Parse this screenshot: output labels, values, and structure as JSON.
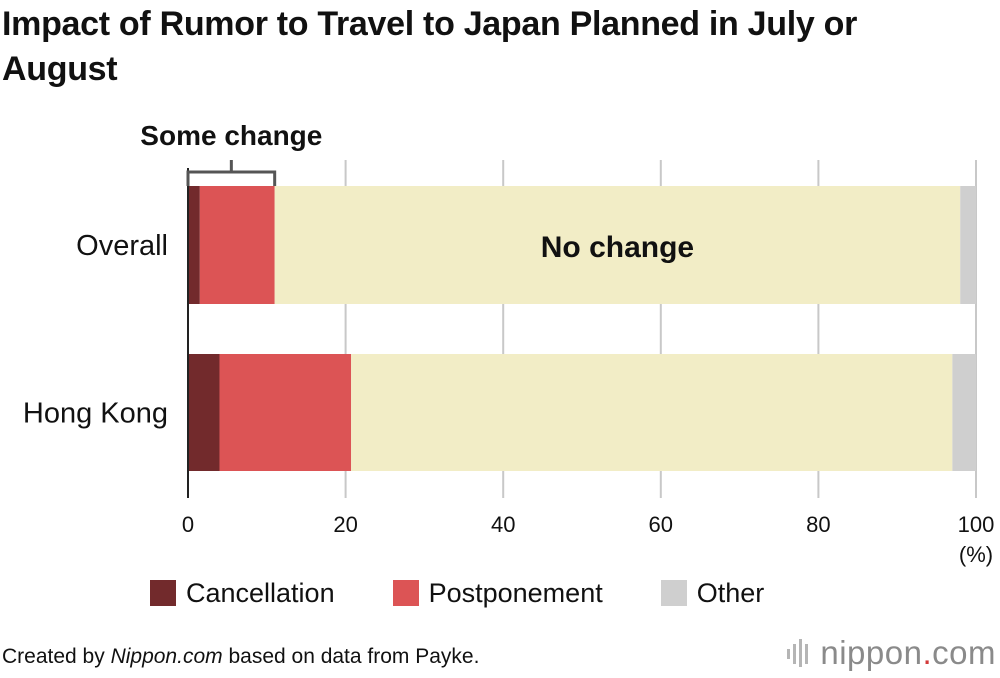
{
  "title": "Impact of Rumor to Travel to Japan Planned in July or August",
  "bracket_label": "Some change",
  "inside_label": "No change",
  "unit_label": "(%)",
  "colors": {
    "cancellation": "#722a2c",
    "postponement": "#dc5455",
    "no_change": "#f2edc6",
    "other": "#cfcfcf",
    "grid": "#c8c8c8",
    "axis": "#222222",
    "bracket": "#555555"
  },
  "legend": [
    {
      "label": "Cancellation",
      "color": "#722a2c"
    },
    {
      "label": "Postponement",
      "color": "#dc5455"
    },
    {
      "label": "Other",
      "color": "#cfcfcf"
    }
  ],
  "source": {
    "prefix": "Created by ",
    "site": "Nippon.com",
    "suffix": " based on data from Payke."
  },
  "brand": {
    "name": "nippon",
    "dot": ".",
    "tld": "com"
  },
  "chart_data": {
    "type": "bar",
    "orientation": "horizontal",
    "stacked": true,
    "title": "Impact of Rumor to Travel to Japan Planned in July or August",
    "categories": [
      "Overall",
      "Hong Kong"
    ],
    "series": [
      {
        "name": "Cancellation",
        "values": [
          1.5,
          4.0
        ]
      },
      {
        "name": "Postponement",
        "values": [
          9.5,
          16.7
        ]
      },
      {
        "name": "No change",
        "values": [
          87.0,
          76.3
        ]
      },
      {
        "name": "Other",
        "values": [
          2.0,
          3.0
        ]
      }
    ],
    "xlim": [
      0,
      100
    ],
    "xticks": [
      0,
      20,
      40,
      60,
      80,
      100
    ],
    "xunit": "(%)",
    "grid": true,
    "legend_position": "bottom",
    "annotations": [
      "Some change",
      "No change"
    ]
  }
}
